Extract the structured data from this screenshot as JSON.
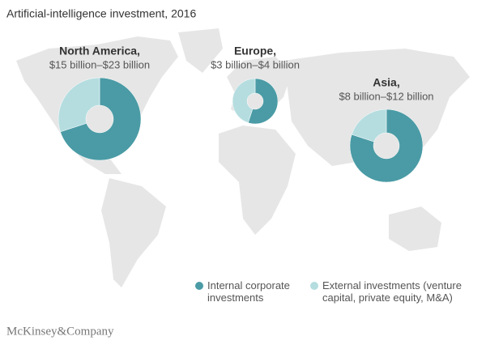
{
  "chart_data": {
    "type": "donut",
    "title": "Artificial-intelligence investment, 2016",
    "categories": [
      "North America,",
      "Europe,",
      "Asia,"
    ],
    "subtitles": [
      "$15 billion–$23 billion",
      "$3 billion–$4 billion",
      "$8 billion–$12 billion"
    ],
    "series": [
      {
        "name": "Internal corporate investments",
        "color": "#4a9ba5",
        "values": [
          70,
          55,
          80
        ]
      },
      {
        "name": "External investments (venture capital, private equity, M&A)",
        "color": "#b5dde0",
        "values": [
          30,
          45,
          20
        ]
      }
    ],
    "footer": "McKinsey&Company"
  }
}
